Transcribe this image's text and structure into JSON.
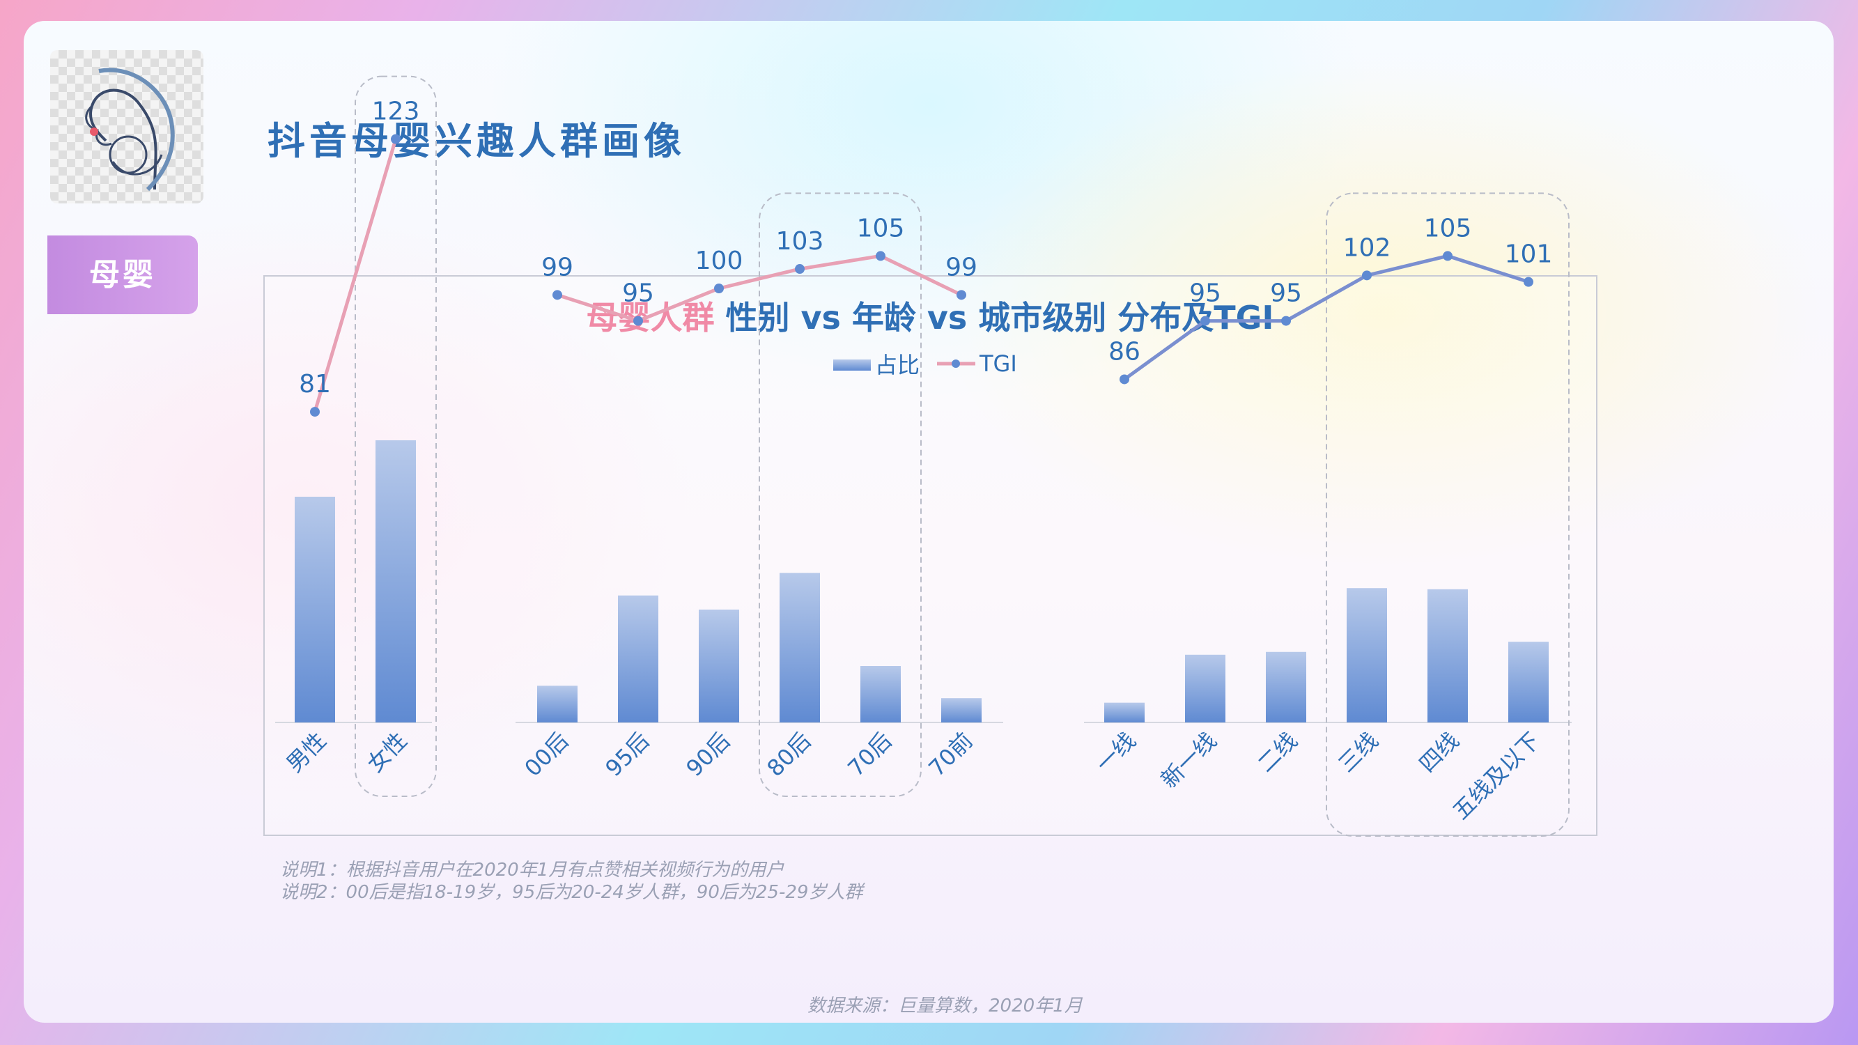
{
  "page": {
    "title": "抖音母婴兴趣人群画像",
    "side_tab": "母婴",
    "notes": [
      "说明1：根据抖音用户在2020年1月有点赞相关视频行为的用户",
      "说明2：00后是指18-19岁，95后为20-24岁人群，90后为25-29岁人群"
    ],
    "source": "数据来源：巨量算数，2020年1月"
  },
  "colors": {
    "bar_top": "#b7c9ea",
    "bar_bottom": "#5f8ad2",
    "tgi_line_pink": "#e8a0b4",
    "tgi_line_purple": "#7a8fd0",
    "title_blue": "#2f6fb5",
    "title_pink": "#f08aa6",
    "label_blue": "#2f6fb5",
    "frame": "#c9cbd6"
  },
  "chart_data": {
    "type": "bar",
    "title_highlight": "母婴人群",
    "title_rest": " 性别 vs 年龄 vs 城市级别 分布及TGI",
    "legend": [
      "占比",
      "TGI"
    ],
    "legend_placement": "top-center",
    "groups": [
      {
        "name": "gender",
        "categories": [
          "男性",
          "女性"
        ],
        "share": [
          0.4,
          0.5
        ],
        "tgi": [
          81,
          123
        ],
        "line_color": "pink",
        "highlight": [
          "女性"
        ]
      },
      {
        "name": "age",
        "categories": [
          "00后",
          "95后",
          "90后",
          "80后",
          "70后",
          "70前"
        ],
        "share": [
          0.065,
          0.225,
          0.2,
          0.265,
          0.1,
          0.043
        ],
        "tgi": [
          99,
          95,
          100,
          103,
          105,
          99
        ],
        "line_color": "pink",
        "highlight": [
          "80后",
          "70后"
        ]
      },
      {
        "name": "city",
        "categories": [
          "一线",
          "新一线",
          "二线",
          "三线",
          "四线",
          "五线及以下"
        ],
        "share": [
          0.035,
          0.12,
          0.125,
          0.238,
          0.236,
          0.143
        ],
        "tgi": [
          86,
          95,
          95,
          102,
          105,
          101
        ],
        "line_color": "purple",
        "highlight": [
          "三线",
          "四线",
          "五线及以下"
        ]
      }
    ]
  }
}
